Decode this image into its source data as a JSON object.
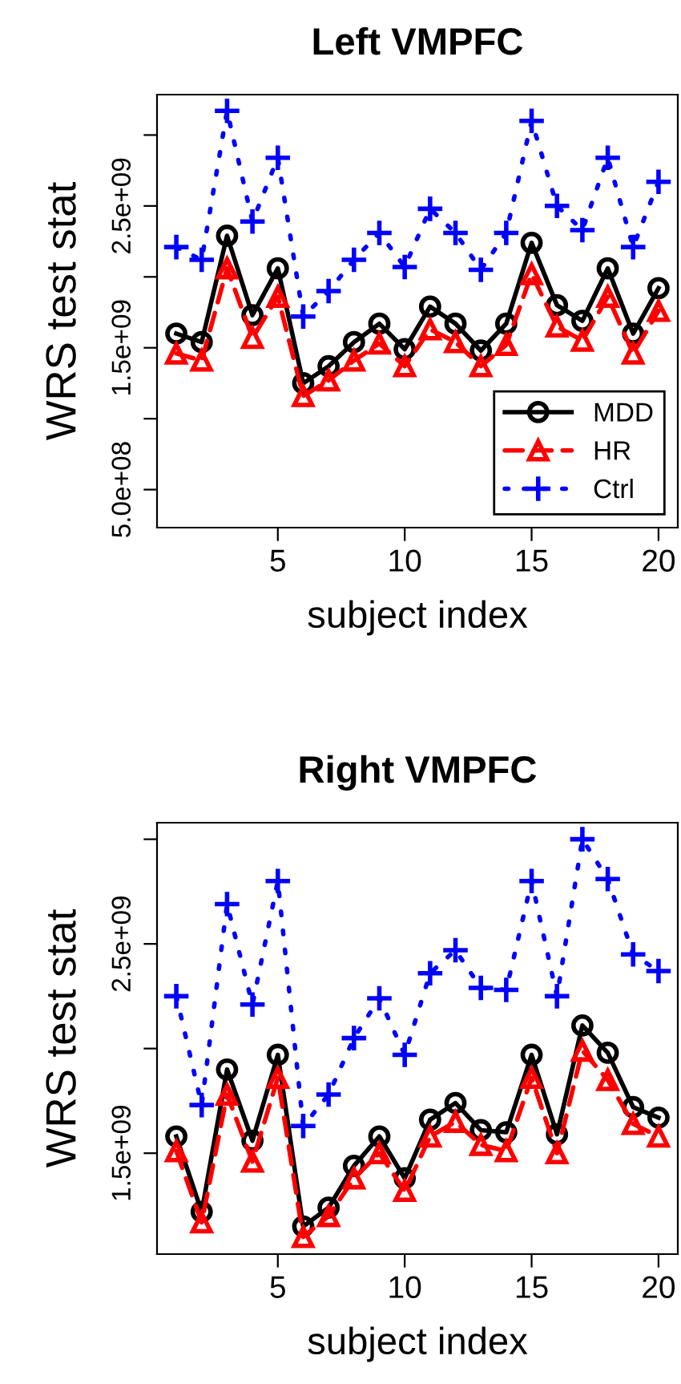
{
  "chart_data": [
    {
      "type": "line",
      "title": "Left VMPFC",
      "xlabel": "subject index",
      "ylabel": "WRS test stat",
      "grid": false,
      "legend": "bottom right",
      "x": [
        1,
        2,
        3,
        4,
        5,
        6,
        7,
        8,
        9,
        10,
        11,
        12,
        13,
        14,
        15,
        16,
        17,
        18,
        19,
        20
      ],
      "xlim": [
        0.24,
        20.76
      ],
      "xticks": [
        5,
        10,
        15,
        20
      ],
      "ylim": [
        232000000.0,
        3285000000.0
      ],
      "yticks": [
        {
          "value": 500000000.0,
          "label": "5.0e+08"
        },
        {
          "value": 1000000000.0,
          "label": null
        },
        {
          "value": 1500000000.0,
          "label": "1.5e+09"
        },
        {
          "value": 2000000000.0,
          "label": null
        },
        {
          "value": 2500000000.0,
          "label": "2.5e+09"
        },
        {
          "value": 3000000000.0,
          "label": null
        }
      ],
      "series": [
        {
          "name": "MDD",
          "color": "#000000",
          "marker": "circle",
          "line_style": "solid",
          "values": [
            1600000000.0,
            1540000000.0,
            2290000000.0,
            1730000000.0,
            2060000000.0,
            1250000000.0,
            1370000000.0,
            1540000000.0,
            1670000000.0,
            1490000000.0,
            1790000000.0,
            1670000000.0,
            1480000000.0,
            1670000000.0,
            2240000000.0,
            1800000000.0,
            1690000000.0,
            2060000000.0,
            1600000000.0,
            1920000000.0
          ]
        },
        {
          "name": "HR",
          "color": "#ff0000",
          "marker": "triangle",
          "line_style": "dashed",
          "values": [
            1460000000.0,
            1410000000.0,
            2060000000.0,
            1570000000.0,
            1860000000.0,
            1160000000.0,
            1270000000.0,
            1410000000.0,
            1530000000.0,
            1370000000.0,
            1630000000.0,
            1540000000.0,
            1370000000.0,
            1520000000.0,
            2020000000.0,
            1650000000.0,
            1550000000.0,
            1860000000.0,
            1460000000.0,
            1760000000.0
          ]
        },
        {
          "name": "Ctrl",
          "color": "#0000ff",
          "marker": "cross",
          "line_style": "dotted",
          "values": [
            2210000000.0,
            2120000000.0,
            3170000000.0,
            2390000000.0,
            2840000000.0,
            1720000000.0,
            1900000000.0,
            2120000000.0,
            2310000000.0,
            2070000000.0,
            2480000000.0,
            2310000000.0,
            2050000000.0,
            2310000000.0,
            3100000000.0,
            2500000000.0,
            2330000000.0,
            2840000000.0,
            2210000000.0,
            2670000000.0
          ]
        }
      ]
    },
    {
      "type": "line",
      "title": "Right VMPFC",
      "xlabel": "subject index",
      "ylabel": "WRS test stat",
      "grid": false,
      "legend": false,
      "x": [
        1,
        2,
        3,
        4,
        5,
        6,
        7,
        8,
        9,
        10,
        11,
        12,
        13,
        14,
        15,
        16,
        17,
        18,
        19,
        20
      ],
      "xlim": [
        0.24,
        20.76
      ],
      "xticks": [
        5,
        10,
        15,
        20
      ],
      "ylim": [
        1018000000.0,
        3079000000.0
      ],
      "yticks": [
        {
          "value": 1500000000.0,
          "label": "1.5e+09"
        },
        {
          "value": 2000000000.0,
          "label": null
        },
        {
          "value": 2500000000.0,
          "label": "2.5e+09"
        },
        {
          "value": 3000000000.0,
          "label": null
        }
      ],
      "series": [
        {
          "color": "#000000",
          "marker": "circle",
          "line_style": "solid",
          "values": [
            1580000000.0,
            1220000000.0,
            1900000000.0,
            1560000000.0,
            1970000000.0,
            1150000000.0,
            1240000000.0,
            1440000000.0,
            1580000000.0,
            1380000000.0,
            1660000000.0,
            1740000000.0,
            1610000000.0,
            1600000000.0,
            1970000000.0,
            1590000000.0,
            2110000000.0,
            1980000000.0,
            1720000000.0,
            1670000000.0
          ]
        },
        {
          "color": "#ff0000",
          "marker": "triangle",
          "line_style": "dashed",
          "values": [
            1510000000.0,
            1170000000.0,
            1780000000.0,
            1460000000.0,
            1860000000.0,
            1100000000.0,
            1200000000.0,
            1380000000.0,
            1500000000.0,
            1320000000.0,
            1580000000.0,
            1650000000.0,
            1540000000.0,
            1510000000.0,
            1860000000.0,
            1500000000.0,
            1990000000.0,
            1850000000.0,
            1640000000.0,
            1580000000.0
          ]
        },
        {
          "color": "#0000ff",
          "marker": "cross",
          "line_style": "dotted",
          "values": [
            2250000000.0,
            1730000000.0,
            2690000000.0,
            2210000000.0,
            2800000000.0,
            1630000000.0,
            1780000000.0,
            2050000000.0,
            2240000000.0,
            1970000000.0,
            2360000000.0,
            2470000000.0,
            2290000000.0,
            2280000000.0,
            2800000000.0,
            2250000000.0,
            3000000000.0,
            2810000000.0,
            2450000000.0,
            2370000000.0
          ]
        }
      ]
    }
  ]
}
